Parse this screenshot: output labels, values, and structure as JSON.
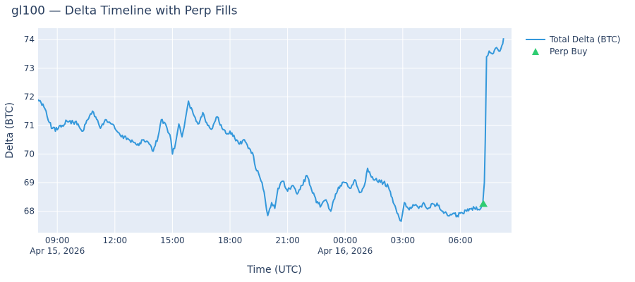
{
  "chart_data": {
    "type": "line",
    "title": "gl100 — Delta Timeline with Perp Fills",
    "xlabel": "Time (UTC)",
    "ylabel": "Delta (BTC)",
    "x_range": [
      "2026-04-15 08:00",
      "2026-04-16 08:40"
    ],
    "ylim": [
      67.25,
      74.4
    ],
    "x_ticks": [
      {
        "time": "2026-04-15 09:00",
        "label": "09:00",
        "date_label": "Apr 15, 2026"
      },
      {
        "time": "2026-04-15 12:00",
        "label": "12:00",
        "date_label": ""
      },
      {
        "time": "2026-04-15 15:00",
        "label": "15:00",
        "date_label": ""
      },
      {
        "time": "2026-04-15 18:00",
        "label": "18:00",
        "date_label": ""
      },
      {
        "time": "2026-04-15 21:00",
        "label": "21:00",
        "date_label": ""
      },
      {
        "time": "2026-04-16 00:00",
        "label": "00:00",
        "date_label": "Apr 16, 2026"
      },
      {
        "time": "2026-04-16 03:00",
        "label": "03:00",
        "date_label": ""
      },
      {
        "time": "2026-04-16 06:00",
        "label": "06:00",
        "date_label": ""
      }
    ],
    "y_ticks": [
      68,
      69,
      70,
      71,
      72,
      73,
      74
    ],
    "grid": true,
    "legend_position": "top-right",
    "colors": {
      "plot_bg": "#E5ECF6",
      "grid": "#ffffff",
      "delta_line": "#3498DB",
      "perp_buy": "#2ECC71",
      "text": "#2a3f5f"
    },
    "series": [
      {
        "name": "Total Delta (BTC)",
        "mode": "line",
        "points": [
          [
            "2026-04-15 08:00",
            71.9
          ],
          [
            "2026-04-15 08:15",
            71.75
          ],
          [
            "2026-04-15 08:25",
            71.5
          ],
          [
            "2026-04-15 08:35",
            71.1
          ],
          [
            "2026-04-15 08:45",
            70.9
          ],
          [
            "2026-04-15 09:00",
            70.85
          ],
          [
            "2026-04-15 09:15",
            71.0
          ],
          [
            "2026-04-15 09:30",
            71.15
          ],
          [
            "2026-04-15 09:50",
            71.1
          ],
          [
            "2026-04-15 10:05",
            71.05
          ],
          [
            "2026-04-15 10:20",
            70.8
          ],
          [
            "2026-04-15 10:35",
            71.2
          ],
          [
            "2026-04-15 10:50",
            71.5
          ],
          [
            "2026-04-15 11:00",
            71.3
          ],
          [
            "2026-04-15 11:15",
            70.9
          ],
          [
            "2026-04-15 11:30",
            71.2
          ],
          [
            "2026-04-15 11:50",
            71.05
          ],
          [
            "2026-04-15 12:00",
            70.9
          ],
          [
            "2026-04-15 12:20",
            70.6
          ],
          [
            "2026-04-15 12:40",
            70.55
          ],
          [
            "2026-04-15 13:00",
            70.4
          ],
          [
            "2026-04-15 13:15",
            70.3
          ],
          [
            "2026-04-15 13:30",
            70.5
          ],
          [
            "2026-04-15 13:45",
            70.4
          ],
          [
            "2026-04-15 14:00",
            70.1
          ],
          [
            "2026-04-15 14:15",
            70.6
          ],
          [
            "2026-04-15 14:25",
            71.2
          ],
          [
            "2026-04-15 14:40",
            71.0
          ],
          [
            "2026-04-15 14:55",
            70.5
          ],
          [
            "2026-04-15 15:00",
            70.0
          ],
          [
            "2026-04-15 15:10",
            70.4
          ],
          [
            "2026-04-15 15:20",
            71.05
          ],
          [
            "2026-04-15 15:30",
            70.6
          ],
          [
            "2026-04-15 15:40",
            71.2
          ],
          [
            "2026-04-15 15:50",
            71.85
          ],
          [
            "2026-04-15 16:05",
            71.4
          ],
          [
            "2026-04-15 16:20",
            71.05
          ],
          [
            "2026-04-15 16:35",
            71.45
          ],
          [
            "2026-04-15 16:50",
            71.0
          ],
          [
            "2026-04-15 17:05",
            70.9
          ],
          [
            "2026-04-15 17:20",
            71.3
          ],
          [
            "2026-04-15 17:35",
            70.9
          ],
          [
            "2026-04-15 17:50",
            70.7
          ],
          [
            "2026-04-15 18:00",
            70.8
          ],
          [
            "2026-04-15 18:15",
            70.55
          ],
          [
            "2026-04-15 18:30",
            70.35
          ],
          [
            "2026-04-15 18:45",
            70.5
          ],
          [
            "2026-04-15 19:00",
            70.2
          ],
          [
            "2026-04-15 19:10",
            70.05
          ],
          [
            "2026-04-15 19:20",
            69.5
          ],
          [
            "2026-04-15 19:30",
            69.3
          ],
          [
            "2026-04-15 19:40",
            69.0
          ],
          [
            "2026-04-15 19:50",
            68.4
          ],
          [
            "2026-04-15 19:58",
            67.85
          ],
          [
            "2026-04-15 20:10",
            68.3
          ],
          [
            "2026-04-15 20:20",
            68.1
          ],
          [
            "2026-04-15 20:30",
            68.8
          ],
          [
            "2026-04-15 20:45",
            69.05
          ],
          [
            "2026-04-15 21:00",
            68.7
          ],
          [
            "2026-04-15 21:15",
            68.9
          ],
          [
            "2026-04-15 21:30",
            68.6
          ],
          [
            "2026-04-15 21:45",
            68.9
          ],
          [
            "2026-04-15 22:00",
            69.25
          ],
          [
            "2026-04-15 22:15",
            68.75
          ],
          [
            "2026-04-15 22:30",
            68.3
          ],
          [
            "2026-04-15 22:45",
            68.2
          ],
          [
            "2026-04-15 23:00",
            68.4
          ],
          [
            "2026-04-15 23:15",
            68.0
          ],
          [
            "2026-04-15 23:30",
            68.6
          ],
          [
            "2026-04-15 23:45",
            68.9
          ],
          [
            "2026-04-16 00:00",
            69.0
          ],
          [
            "2026-04-16 00:15",
            68.8
          ],
          [
            "2026-04-16 00:30",
            69.1
          ],
          [
            "2026-04-16 00:45",
            68.65
          ],
          [
            "2026-04-16 01:00",
            68.9
          ],
          [
            "2026-04-16 01:10",
            69.5
          ],
          [
            "2026-04-16 01:25",
            69.2
          ],
          [
            "2026-04-16 01:40",
            69.05
          ],
          [
            "2026-04-16 02:00",
            69.0
          ],
          [
            "2026-04-16 02:15",
            68.85
          ],
          [
            "2026-04-16 02:30",
            68.3
          ],
          [
            "2026-04-16 02:45",
            67.9
          ],
          [
            "2026-04-16 02:55",
            67.65
          ],
          [
            "2026-04-16 03:05",
            68.3
          ],
          [
            "2026-04-16 03:20",
            68.05
          ],
          [
            "2026-04-16 03:35",
            68.2
          ],
          [
            "2026-04-16 03:50",
            68.1
          ],
          [
            "2026-04-16 04:05",
            68.3
          ],
          [
            "2026-04-16 04:20",
            68.1
          ],
          [
            "2026-04-16 04:35",
            68.25
          ],
          [
            "2026-04-16 04:50",
            68.2
          ],
          [
            "2026-04-16 05:05",
            68.0
          ],
          [
            "2026-04-16 05:20",
            67.85
          ],
          [
            "2026-04-16 05:35",
            67.9
          ],
          [
            "2026-04-16 05:50",
            67.85
          ],
          [
            "2026-04-16 06:05",
            67.95
          ],
          [
            "2026-04-16 06:20",
            68.0
          ],
          [
            "2026-04-16 06:35",
            68.1
          ],
          [
            "2026-04-16 06:50",
            68.15
          ],
          [
            "2026-04-16 07:00",
            68.05
          ],
          [
            "2026-04-16 07:10",
            68.25
          ],
          [
            "2026-04-16 07:15",
            69.0
          ],
          [
            "2026-04-16 07:18",
            70.5
          ],
          [
            "2026-04-16 07:22",
            73.4
          ],
          [
            "2026-04-16 07:30",
            73.6
          ],
          [
            "2026-04-16 07:40",
            73.5
          ],
          [
            "2026-04-16 07:50",
            73.7
          ],
          [
            "2026-04-16 08:00",
            73.6
          ],
          [
            "2026-04-16 08:10",
            73.8
          ],
          [
            "2026-04-16 08:15",
            74.05
          ]
        ]
      },
      {
        "name": "Perp Buy",
        "mode": "markers",
        "marker": "triangle-up",
        "points": [
          [
            "2026-04-16 07:12",
            68.25
          ]
        ]
      }
    ]
  }
}
